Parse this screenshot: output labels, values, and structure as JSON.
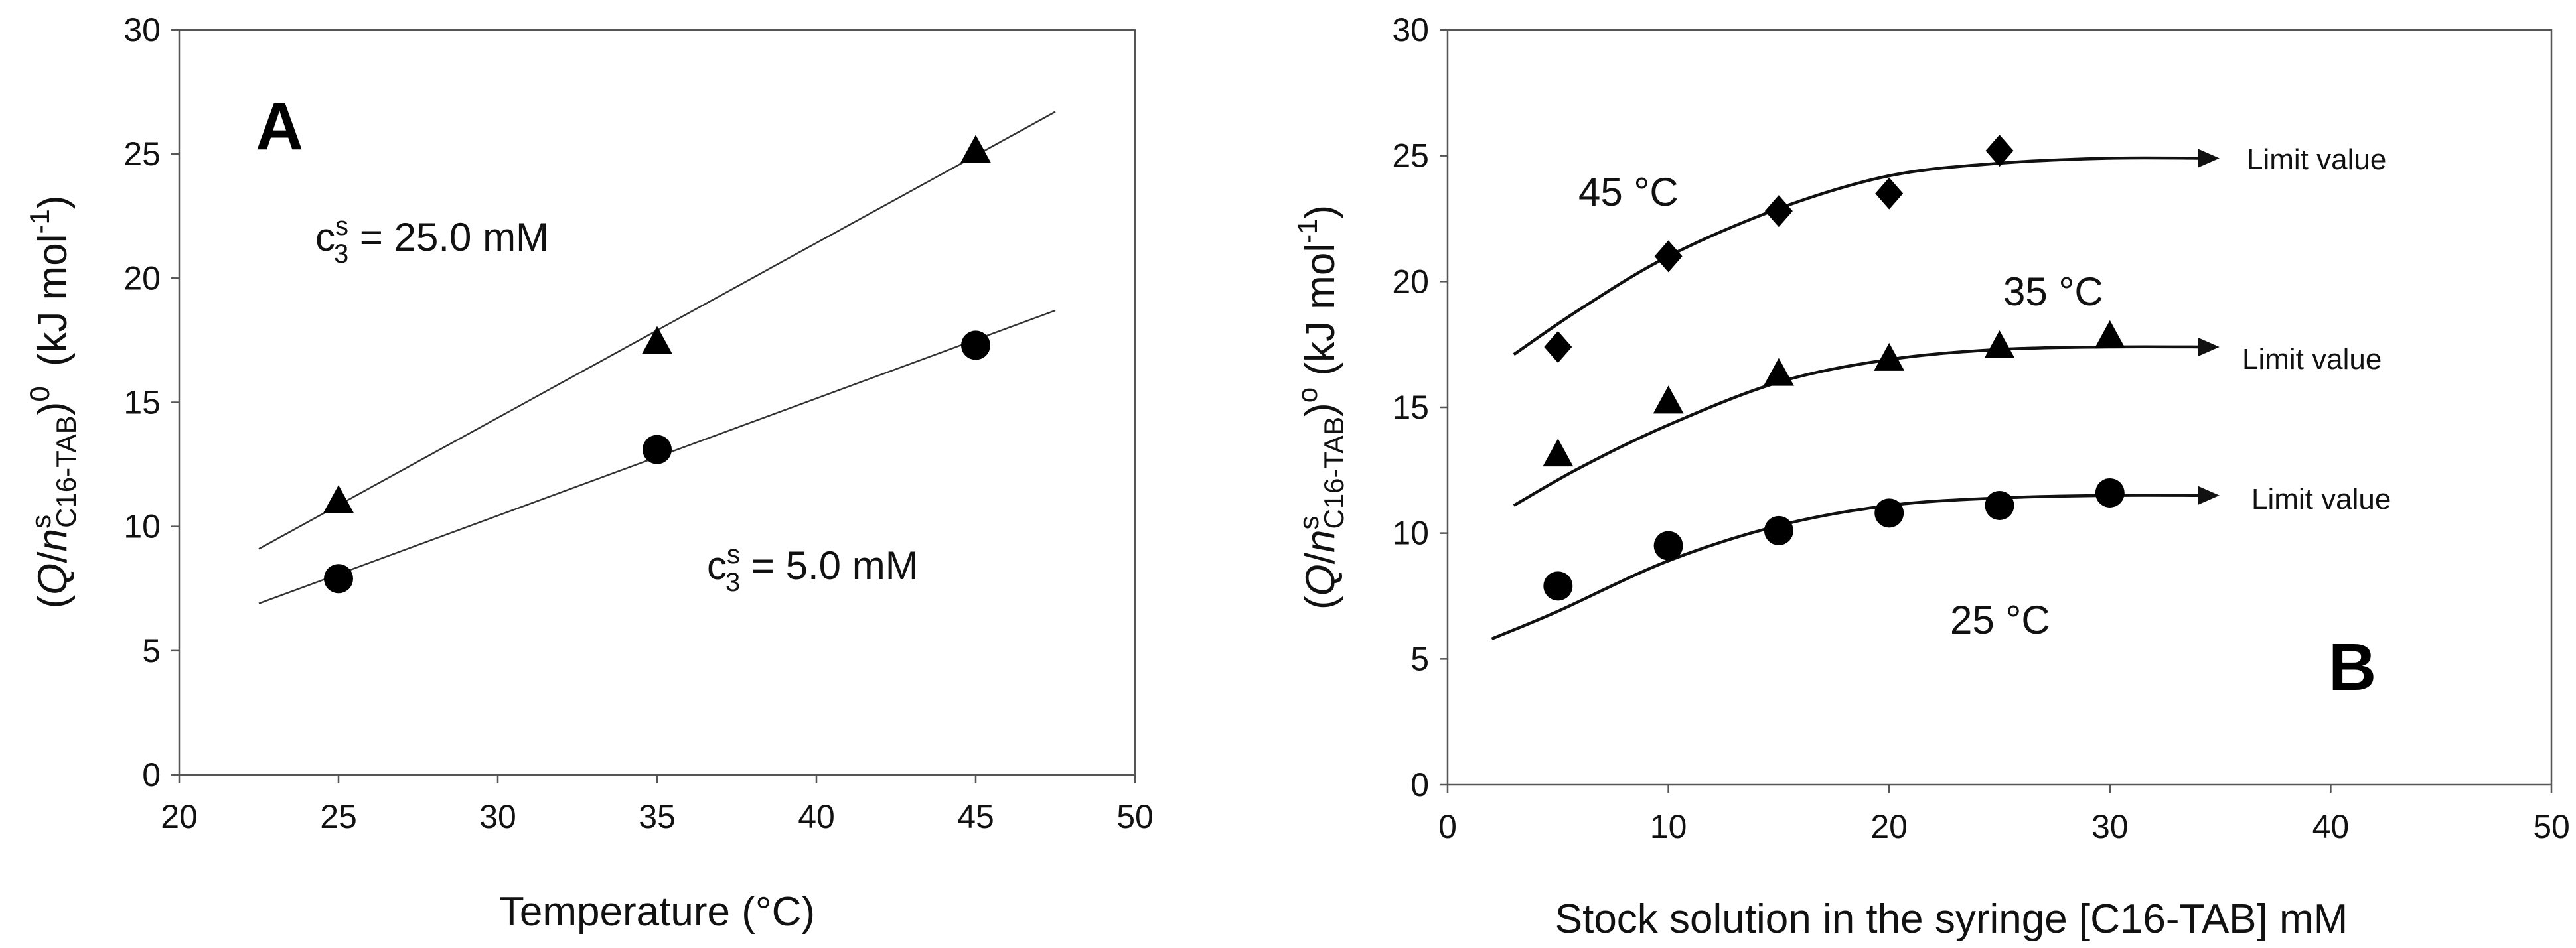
{
  "chart_data": [
    {
      "panel": "A",
      "type": "scatter",
      "xlabel": "Temperature (°C)",
      "ylabel_parts": {
        "open": "(",
        "Q": "Q",
        "slash": "/",
        "n": "n",
        "sup_s": "s",
        "sub": "C16-TAB",
        "close": ")",
        "sup_0": "0",
        "units": "(kJ mol",
        "units_sup": "-1",
        "units_close": ")"
      },
      "xlim": [
        20,
        50
      ],
      "ylim": [
        0,
        30
      ],
      "xticks": [
        "20",
        "25",
        "30",
        "35",
        "40",
        "45",
        "50"
      ],
      "yticks": [
        "0",
        "5",
        "10",
        "15",
        "20",
        "25",
        "30"
      ],
      "series": [
        {
          "name": "cs3 = 25.0 mM",
          "label_parts": {
            "c": "c",
            "sup": "s",
            "sub": "3",
            "rest": " = 25.0 mM"
          },
          "marker": "triangle",
          "x": [
            25,
            35,
            45
          ],
          "y": [
            11.0,
            17.4,
            25.1
          ],
          "fit": {
            "x": [
              22.5,
              47.5
            ],
            "y": [
              9.1,
              26.7
            ]
          }
        },
        {
          "name": "cs3 = 5.0 mM",
          "label_parts": {
            "c": "c",
            "sup": "s",
            "sub": "3",
            "rest": " = 5.0 mM"
          },
          "marker": "circle",
          "x": [
            25,
            35,
            45
          ],
          "y": [
            7.9,
            13.1,
            17.3
          ],
          "fit": {
            "x": [
              22.5,
              47.5
            ],
            "y": [
              6.9,
              18.7
            ]
          }
        }
      ]
    },
    {
      "panel": "B",
      "type": "scatter",
      "xlabel": "Stock solution in the syringe  [C16-TAB] mM",
      "ylabel_parts": {
        "open": "(",
        "Q": "Q",
        "slash": "/",
        "n": "n",
        "sup_s": "s",
        "sub": "C16-TAB",
        "close": ")",
        "sup_0": "o",
        "units": " (kJ mol",
        "units_sup": "-1",
        "units_close": ")"
      },
      "xlim": [
        0,
        50
      ],
      "ylim": [
        0,
        30
      ],
      "xticks": [
        "0",
        "10",
        "20",
        "30",
        "40",
        "50"
      ],
      "yticks": [
        "0",
        "5",
        "10",
        "15",
        "20",
        "25",
        "30"
      ],
      "limit_label": "Limit value",
      "series": [
        {
          "name": "45 °C",
          "marker": "diamond",
          "x": [
            5,
            10,
            15,
            20,
            25
          ],
          "y": [
            17.4,
            21.0,
            22.8,
            23.5,
            25.2
          ],
          "fit": {
            "x": [
              3,
              6,
              10,
              15,
              20,
              25,
              30,
              34
            ],
            "y": [
              17.1,
              18.9,
              21.0,
              22.9,
              24.2,
              24.7,
              24.9,
              24.9
            ]
          }
        },
        {
          "name": "35 °C",
          "marker": "triangle",
          "x": [
            5,
            10,
            15,
            20,
            25,
            30
          ],
          "y": [
            13.1,
            15.2,
            16.3,
            16.9,
            17.4,
            17.8
          ],
          "fit": {
            "x": [
              3,
              6,
              10,
              15,
              20,
              25,
              30,
              34
            ],
            "y": [
              11.1,
              12.6,
              14.3,
              16.0,
              16.9,
              17.3,
              17.4,
              17.4
            ]
          }
        },
        {
          "name": "25 °C",
          "marker": "circle",
          "x": [
            5,
            10,
            15,
            20,
            25,
            30
          ],
          "y": [
            7.9,
            9.5,
            10.1,
            10.8,
            11.1,
            11.6
          ],
          "fit": {
            "x": [
              2,
              5,
              10,
              15,
              20,
              25,
              30,
              34
            ],
            "y": [
              5.8,
              6.9,
              8.9,
              10.3,
              11.1,
              11.4,
              11.5,
              11.5
            ]
          }
        }
      ]
    }
  ]
}
